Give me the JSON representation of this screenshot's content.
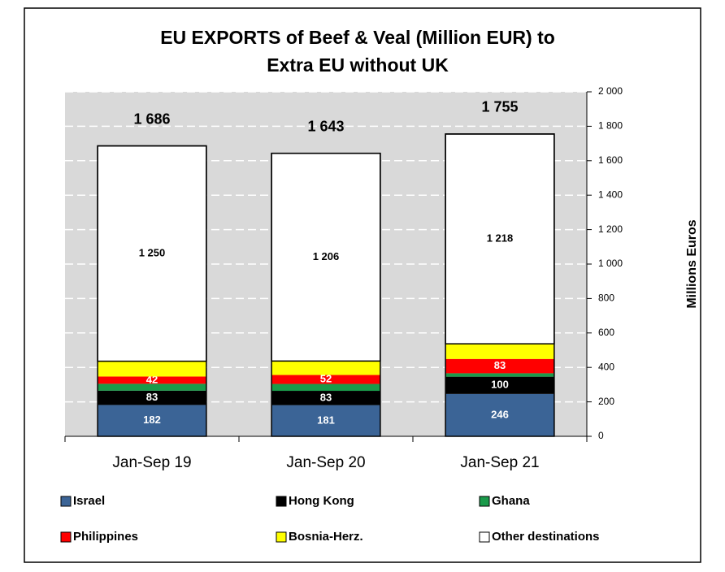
{
  "chart_data": {
    "type": "stacked_bar",
    "title": [
      "EU EXPORTS of Beef & Veal (Million EUR) to",
      "Extra EU without UK"
    ],
    "y_label": "Millions Euros",
    "categories": [
      "Jan-Sep 19",
      "Jan-Sep 20",
      "Jan-Sep 21"
    ],
    "series": [
      {
        "name": "Israel",
        "color": "#3b6496",
        "values": [
          182,
          181,
          246
        ],
        "data_labels": true,
        "label_color": "#ffffff"
      },
      {
        "name": "Hong Kong",
        "color": "#000000",
        "values": [
          83,
          83,
          100
        ],
        "data_labels": true,
        "label_color": "#ffffff"
      },
      {
        "name": "Ghana",
        "color": "#1a9a4a",
        "values": [
          40,
          40,
          20
        ],
        "data_labels": false
      },
      {
        "name": "Philippines",
        "color": "#ff0000",
        "values": [
          42,
          52,
          83
        ],
        "data_labels": true,
        "label_color": "#ffffff"
      },
      {
        "name": "Bosnia-Herz.",
        "color": "#ffff00",
        "values": [
          89,
          81,
          88
        ],
        "data_labels": false
      },
      {
        "name": "Other destinations",
        "color": "#ffffff",
        "values": [
          1250,
          1206,
          1218
        ],
        "value_labels": [
          "1 250",
          "1 206",
          "1 218"
        ],
        "data_labels": true,
        "label_color": "#000000"
      }
    ],
    "totals": [
      1686,
      1643,
      1755
    ],
    "total_labels": [
      "1 686",
      "1 643",
      "1 755"
    ],
    "ylim": [
      0,
      2000
    ],
    "yticks": [
      0,
      200,
      400,
      600,
      800,
      {
        "value": 1000,
        "label": "1 000"
      },
      {
        "value": 1200,
        "label": "1 200"
      },
      {
        "value": 1400,
        "label": "1 400"
      },
      {
        "value": 1600,
        "label": "1 600"
      },
      {
        "value": 1800,
        "label": "1 800"
      },
      {
        "value": 2000,
        "label": "2 000"
      }
    ],
    "y_axis_side": "right",
    "grid": true,
    "legend": "bottom"
  }
}
